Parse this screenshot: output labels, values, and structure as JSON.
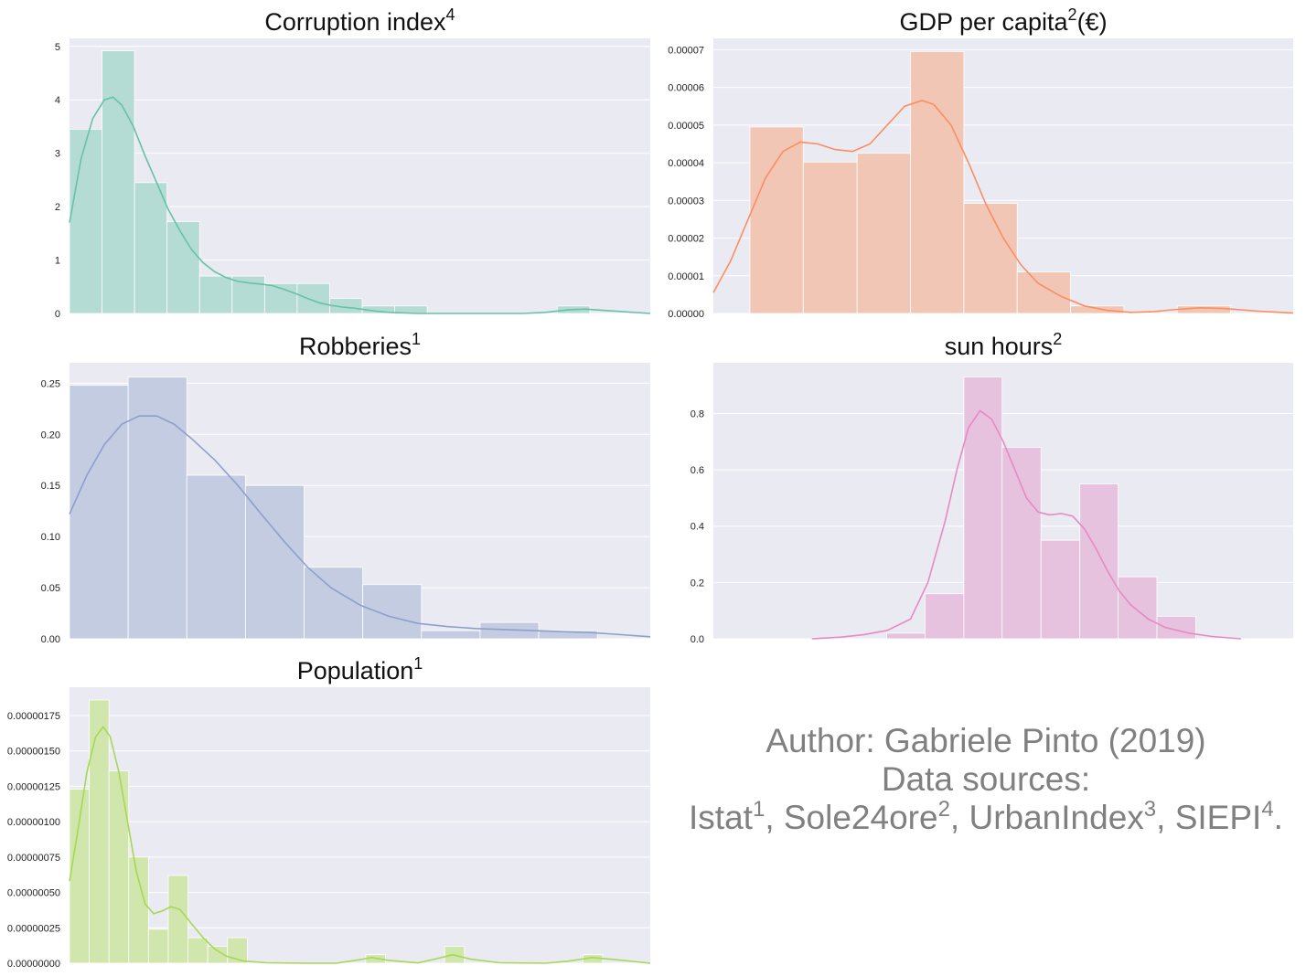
{
  "chart_data": [
    {
      "type": "bar",
      "title": "Corruption index",
      "title_sup": "4",
      "color": "#66c2a5",
      "bar_color": "#b5dcd4",
      "xlim": [
        0,
        1
      ],
      "ylim": [
        0,
        5.15
      ],
      "yticks": [
        0,
        1,
        2,
        3,
        4,
        5
      ],
      "yticklabels": [
        "0",
        "1",
        "2",
        "3",
        "4",
        "5"
      ],
      "bins": [
        [
          0.0,
          0.056,
          3.45
        ],
        [
          0.056,
          0.112,
          4.92
        ],
        [
          0.112,
          0.168,
          2.45
        ],
        [
          0.168,
          0.224,
          1.72
        ],
        [
          0.224,
          0.28,
          0.7
        ],
        [
          0.28,
          0.336,
          0.7
        ],
        [
          0.336,
          0.392,
          0.56
        ],
        [
          0.392,
          0.448,
          0.56
        ],
        [
          0.448,
          0.504,
          0.28
        ],
        [
          0.504,
          0.56,
          0.14
        ],
        [
          0.56,
          0.616,
          0.14
        ],
        [
          0.616,
          0.672,
          0.0
        ],
        [
          0.672,
          0.728,
          0.0
        ],
        [
          0.728,
          0.784,
          0.0
        ],
        [
          0.784,
          0.84,
          0.0
        ],
        [
          0.84,
          0.896,
          0.14
        ]
      ],
      "kde": [
        [
          0.0,
          1.7
        ],
        [
          0.02,
          2.9
        ],
        [
          0.04,
          3.65
        ],
        [
          0.06,
          4.0
        ],
        [
          0.075,
          4.05
        ],
        [
          0.09,
          3.9
        ],
        [
          0.11,
          3.5
        ],
        [
          0.13,
          2.95
        ],
        [
          0.15,
          2.45
        ],
        [
          0.17,
          1.95
        ],
        [
          0.19,
          1.55
        ],
        [
          0.21,
          1.2
        ],
        [
          0.23,
          0.95
        ],
        [
          0.25,
          0.78
        ],
        [
          0.27,
          0.67
        ],
        [
          0.29,
          0.6
        ],
        [
          0.31,
          0.57
        ],
        [
          0.33,
          0.55
        ],
        [
          0.35,
          0.52
        ],
        [
          0.37,
          0.45
        ],
        [
          0.39,
          0.37
        ],
        [
          0.41,
          0.28
        ],
        [
          0.43,
          0.2
        ],
        [
          0.45,
          0.15
        ],
        [
          0.47,
          0.12
        ],
        [
          0.49,
          0.1
        ],
        [
          0.51,
          0.07
        ],
        [
          0.53,
          0.04
        ],
        [
          0.55,
          0.02
        ],
        [
          0.6,
          0.0
        ],
        [
          0.7,
          0.0
        ],
        [
          0.78,
          0.0
        ],
        [
          0.82,
          0.02
        ],
        [
          0.86,
          0.07
        ],
        [
          0.89,
          0.08
        ],
        [
          0.93,
          0.05
        ],
        [
          1.0,
          0.0
        ]
      ]
    },
    {
      "type": "bar",
      "title": "GDP per capita",
      "title_sup": "2",
      "title_suffix": "(€)",
      "color": "#fc8d62",
      "bar_color": "#f2c6b4",
      "xlim": [
        0,
        1
      ],
      "ylim": [
        0,
        7.3e-05
      ],
      "yticks": [
        0,
        1e-05,
        2e-05,
        3e-05,
        4e-05,
        5e-05,
        6e-05,
        7e-05
      ],
      "yticklabels": [
        "0.00000",
        "0.00001",
        "0.00002",
        "0.00003",
        "0.00004",
        "0.00005",
        "0.00006",
        "0.00007"
      ],
      "bins": [
        [
          0.063,
          0.155,
          4.95e-05
        ],
        [
          0.155,
          0.248,
          4.02e-05
        ],
        [
          0.248,
          0.34,
          4.25e-05
        ],
        [
          0.34,
          0.432,
          6.95e-05
        ],
        [
          0.432,
          0.524,
          2.92e-05
        ],
        [
          0.524,
          0.616,
          1.1e-05
        ],
        [
          0.616,
          0.708,
          2e-06
        ],
        [
          0.708,
          0.8,
          0.0
        ],
        [
          0.8,
          0.892,
          2e-06
        ]
      ],
      "kde": [
        [
          0.0,
          5.5e-06
        ],
        [
          0.03,
          1.4e-05
        ],
        [
          0.06,
          2.5e-05
        ],
        [
          0.09,
          3.6e-05
        ],
        [
          0.12,
          4.3e-05
        ],
        [
          0.15,
          4.55e-05
        ],
        [
          0.18,
          4.5e-05
        ],
        [
          0.21,
          4.35e-05
        ],
        [
          0.24,
          4.3e-05
        ],
        [
          0.27,
          4.5e-05
        ],
        [
          0.3,
          5e-05
        ],
        [
          0.33,
          5.5e-05
        ],
        [
          0.36,
          5.65e-05
        ],
        [
          0.38,
          5.55e-05
        ],
        [
          0.41,
          5e-05
        ],
        [
          0.44,
          4e-05
        ],
        [
          0.47,
          2.9e-05
        ],
        [
          0.5,
          2e-05
        ],
        [
          0.53,
          1.3e-05
        ],
        [
          0.56,
          8e-06
        ],
        [
          0.6,
          4.5e-06
        ],
        [
          0.64,
          2e-06
        ],
        [
          0.68,
          8e-07
        ],
        [
          0.72,
          3e-07
        ],
        [
          0.76,
          5e-07
        ],
        [
          0.8,
          1.1e-06
        ],
        [
          0.84,
          1.5e-06
        ],
        [
          0.88,
          1.3e-06
        ],
        [
          0.94,
          6e-07
        ],
        [
          1.0,
          1e-07
        ]
      ]
    },
    {
      "type": "bar",
      "title": "Robberies",
      "title_sup": "1",
      "color": "#8da0cb",
      "bar_color": "#c4cce2",
      "xlim": [
        0,
        1
      ],
      "ylim": [
        0,
        0.27
      ],
      "yticks": [
        0,
        0.05,
        0.1,
        0.15,
        0.2,
        0.25
      ],
      "yticklabels": [
        "0.00",
        "0.05",
        "0.10",
        "0.15",
        "0.20",
        "0.25"
      ],
      "bins": [
        [
          0.0,
          0.101,
          0.248
        ],
        [
          0.101,
          0.202,
          0.256
        ],
        [
          0.202,
          0.303,
          0.16
        ],
        [
          0.303,
          0.404,
          0.15
        ],
        [
          0.404,
          0.505,
          0.07
        ],
        [
          0.505,
          0.606,
          0.053
        ],
        [
          0.606,
          0.707,
          0.008
        ],
        [
          0.707,
          0.808,
          0.016
        ],
        [
          0.808,
          0.909,
          0.008
        ]
      ],
      "kde": [
        [
          0.0,
          0.122
        ],
        [
          0.03,
          0.16
        ],
        [
          0.06,
          0.19
        ],
        [
          0.09,
          0.21
        ],
        [
          0.12,
          0.218
        ],
        [
          0.15,
          0.218
        ],
        [
          0.18,
          0.21
        ],
        [
          0.21,
          0.196
        ],
        [
          0.25,
          0.175
        ],
        [
          0.29,
          0.15
        ],
        [
          0.33,
          0.122
        ],
        [
          0.37,
          0.095
        ],
        [
          0.41,
          0.07
        ],
        [
          0.45,
          0.05
        ],
        [
          0.5,
          0.033
        ],
        [
          0.55,
          0.022
        ],
        [
          0.6,
          0.015
        ],
        [
          0.65,
          0.012
        ],
        [
          0.7,
          0.01
        ],
        [
          0.75,
          0.009
        ],
        [
          0.8,
          0.008
        ],
        [
          0.85,
          0.007
        ],
        [
          0.9,
          0.006
        ],
        [
          0.95,
          0.004
        ],
        [
          1.0,
          0.002
        ]
      ]
    },
    {
      "type": "bar",
      "title": "sun hours",
      "title_sup": "2",
      "color": "#e78ac3",
      "bar_color": "#e6c2df",
      "xlim": [
        0,
        1
      ],
      "ylim": [
        0,
        0.98
      ],
      "yticks": [
        0,
        0.2,
        0.4,
        0.6,
        0.8
      ],
      "yticklabels": [
        "0.0",
        "0.2",
        "0.4",
        "0.6",
        "0.8"
      ],
      "bins": [
        [
          0.299,
          0.365,
          0.02
        ],
        [
          0.365,
          0.432,
          0.16
        ],
        [
          0.432,
          0.498,
          0.93
        ],
        [
          0.498,
          0.565,
          0.68
        ],
        [
          0.565,
          0.632,
          0.35
        ],
        [
          0.632,
          0.698,
          0.55
        ],
        [
          0.698,
          0.765,
          0.22
        ],
        [
          0.765,
          0.832,
          0.08
        ]
      ],
      "kde": [
        [
          0.17,
          0.0
        ],
        [
          0.22,
          0.006
        ],
        [
          0.26,
          0.015
        ],
        [
          0.3,
          0.03
        ],
        [
          0.34,
          0.07
        ],
        [
          0.37,
          0.2
        ],
        [
          0.4,
          0.42
        ],
        [
          0.42,
          0.6
        ],
        [
          0.44,
          0.75
        ],
        [
          0.46,
          0.81
        ],
        [
          0.48,
          0.78
        ],
        [
          0.5,
          0.7
        ],
        [
          0.52,
          0.6
        ],
        [
          0.54,
          0.5
        ],
        [
          0.56,
          0.45
        ],
        [
          0.58,
          0.44
        ],
        [
          0.6,
          0.445
        ],
        [
          0.62,
          0.435
        ],
        [
          0.64,
          0.39
        ],
        [
          0.66,
          0.32
        ],
        [
          0.68,
          0.24
        ],
        [
          0.7,
          0.17
        ],
        [
          0.72,
          0.12
        ],
        [
          0.75,
          0.07
        ],
        [
          0.78,
          0.04
        ],
        [
          0.82,
          0.02
        ],
        [
          0.86,
          0.008
        ],
        [
          0.91,
          0.0
        ]
      ]
    },
    {
      "type": "bar",
      "title": "Population",
      "title_sup": "1",
      "color": "#a6d854",
      "bar_color": "#d1e6ad",
      "xlim": [
        0,
        1
      ],
      "ylim": [
        0,
        1.95e-06
      ],
      "yticks": [
        0,
        2.5e-07,
        5e-07,
        7.5e-07,
        1e-06,
        1.25e-06,
        1.5e-06,
        1.75e-06
      ],
      "yticklabels": [
        "0.00000000",
        "0.00000025",
        "0.00000050",
        "0.00000075",
        "0.00000100",
        "0.00000125",
        "0.00000150",
        "0.00000175"
      ],
      "bins": [
        [
          0.0,
          0.034,
          1.23e-06
        ],
        [
          0.034,
          0.068,
          1.86e-06
        ],
        [
          0.068,
          0.102,
          1.36e-06
        ],
        [
          0.102,
          0.136,
          7.5e-07
        ],
        [
          0.136,
          0.17,
          2.4e-07
        ],
        [
          0.17,
          0.204,
          6.2e-07
        ],
        [
          0.204,
          0.238,
          1.8e-07
        ],
        [
          0.238,
          0.272,
          1.2e-07
        ],
        [
          0.272,
          0.306,
          1.8e-07
        ],
        [
          0.306,
          0.34,
          0.0
        ],
        [
          0.34,
          0.374,
          0.0
        ],
        [
          0.374,
          0.408,
          0.0
        ],
        [
          0.408,
          0.442,
          0.0
        ],
        [
          0.442,
          0.476,
          0.0
        ],
        [
          0.476,
          0.51,
          0.0
        ],
        [
          0.51,
          0.544,
          6e-08
        ],
        [
          0.544,
          0.578,
          0.0
        ],
        [
          0.578,
          0.612,
          0.0
        ],
        [
          0.612,
          0.646,
          0.0
        ],
        [
          0.646,
          0.68,
          1.2e-07
        ],
        [
          0.68,
          0.714,
          0.0
        ],
        [
          0.714,
          0.748,
          0.0
        ],
        [
          0.748,
          0.782,
          0.0
        ],
        [
          0.782,
          0.816,
          0.0
        ],
        [
          0.816,
          0.85,
          0.0
        ],
        [
          0.85,
          0.884,
          0.0
        ],
        [
          0.884,
          0.918,
          6e-08
        ]
      ],
      "kde": [
        [
          0.0,
          5.8e-07
        ],
        [
          0.015,
          9.5e-07
        ],
        [
          0.03,
          1.35e-06
        ],
        [
          0.045,
          1.6e-06
        ],
        [
          0.058,
          1.67e-06
        ],
        [
          0.07,
          1.6e-06
        ],
        [
          0.085,
          1.35e-06
        ],
        [
          0.1,
          1e-06
        ],
        [
          0.115,
          6.5e-07
        ],
        [
          0.13,
          4.2e-07
        ],
        [
          0.145,
          3.5e-07
        ],
        [
          0.16,
          3.7e-07
        ],
        [
          0.175,
          4e-07
        ],
        [
          0.19,
          3.8e-07
        ],
        [
          0.21,
          2.8e-07
        ],
        [
          0.23,
          1.8e-07
        ],
        [
          0.25,
          1e-07
        ],
        [
          0.27,
          5e-08
        ],
        [
          0.3,
          1.5e-08
        ],
        [
          0.34,
          3e-09
        ],
        [
          0.4,
          0.0
        ],
        [
          0.46,
          0.0
        ],
        [
          0.5,
          2.5e-08
        ],
        [
          0.52,
          4e-08
        ],
        [
          0.55,
          2e-08
        ],
        [
          0.6,
          2e-09
        ],
        [
          0.63,
          3e-08
        ],
        [
          0.66,
          6e-08
        ],
        [
          0.69,
          3e-08
        ],
        [
          0.74,
          3e-09
        ],
        [
          0.82,
          0.0
        ],
        [
          0.86,
          1.5e-08
        ],
        [
          0.9,
          4e-08
        ],
        [
          0.94,
          2.5e-08
        ],
        [
          1.0,
          0.0
        ]
      ]
    }
  ],
  "credits": {
    "line1": "Author: Gabriele Pinto (2019)",
    "line2": "Data sources:",
    "line3": [
      {
        "text": "Istat",
        "sup": "1",
        "after": ", "
      },
      {
        "text": "Sole24ore",
        "sup": "2",
        "after": ", "
      },
      {
        "text": "UrbanIndex",
        "sup": "3",
        "after": ", "
      },
      {
        "text": "SIEPI",
        "sup": "4",
        "after": "."
      }
    ]
  }
}
